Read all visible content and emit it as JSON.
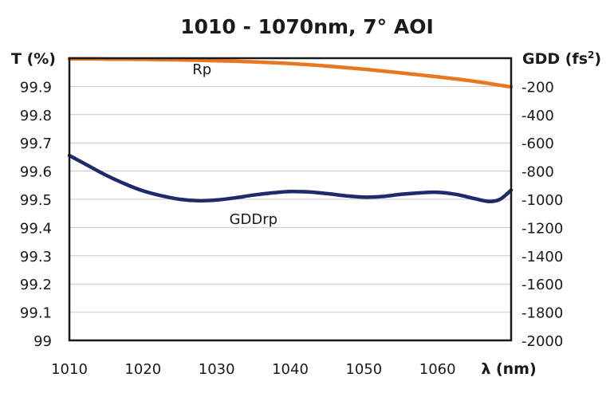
{
  "chart_data": {
    "type": "line",
    "title": "1010 - 1070nm, 7° AOI",
    "xlabel": "λ (nm)",
    "ylabel_left": "T (%)",
    "ylabel_right_main": "GDD (fs",
    "ylabel_right_sup": "2",
    "ylabel_right_end": ")",
    "xlim": [
      1010,
      1070
    ],
    "ylim_left": [
      99,
      100
    ],
    "ylim_right": [
      -2000,
      0
    ],
    "grid": true,
    "x_ticks": [
      "1010",
      "1020",
      "1030",
      "1040",
      "1050",
      "1060"
    ],
    "y_left_ticks": [
      "99.9",
      "99.8",
      "99.7",
      "99.6",
      "99.5",
      "99.4",
      "99.3",
      "99.2",
      "99.1",
      "99"
    ],
    "y_right_ticks": [
      "-200",
      "-400",
      "-600",
      "-800",
      "-1000",
      "-1200",
      "-1400",
      "-1600",
      "-1800",
      "-2000"
    ],
    "series": [
      {
        "name": "Rp",
        "axis": "left",
        "color": "#E87722",
        "x": [
          1010,
          1015,
          1020,
          1025,
          1030,
          1035,
          1040,
          1045,
          1050,
          1055,
          1060,
          1065,
          1070
        ],
        "y": [
          99.998,
          99.997,
          99.996,
          99.994,
          99.991,
          99.987,
          99.981,
          99.972,
          99.961,
          99.948,
          99.934,
          99.918,
          99.898
        ]
      },
      {
        "name": "GDDrp",
        "axis": "right",
        "color": "#1F2A6B",
        "x": [
          1010,
          1012.5,
          1015,
          1017.5,
          1020,
          1022.5,
          1025,
          1027.5,
          1030,
          1032.5,
          1035,
          1037.5,
          1040,
          1042.5,
          1045,
          1047.5,
          1050,
          1052.5,
          1055,
          1057.5,
          1060,
          1062.5,
          1065,
          1067,
          1068.5,
          1070
        ],
        "y": [
          -690,
          -760,
          -830,
          -890,
          -940,
          -975,
          -1000,
          -1010,
          -1005,
          -990,
          -970,
          -955,
          -945,
          -948,
          -960,
          -975,
          -985,
          -980,
          -965,
          -955,
          -950,
          -965,
          -995,
          -1015,
          -1000,
          -935
        ]
      }
    ],
    "series_labels": [
      {
        "text": "Rp",
        "x": 1028,
        "y_left": 99.96
      },
      {
        "text": "GDDrp",
        "x": 1035,
        "y_left": 99.43
      }
    ]
  }
}
